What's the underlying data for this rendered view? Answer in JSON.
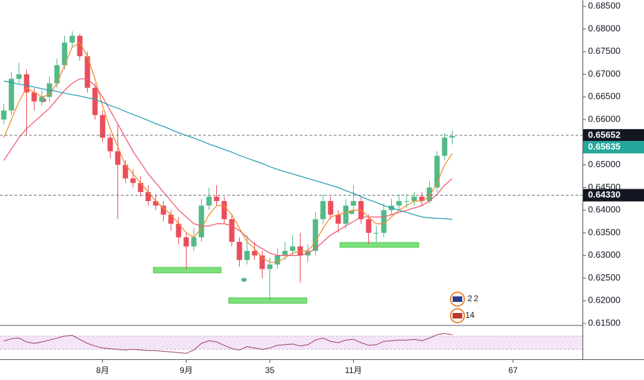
{
  "chart_data": [
    {
      "type": "candlestick",
      "up_color": "#53b987",
      "down_color": "#eb4d5c",
      "ohlc": [
        [
          0.66,
          0.6635,
          0.659,
          0.662
        ],
        [
          0.662,
          0.6705,
          0.661,
          0.669
        ],
        [
          0.669,
          0.6725,
          0.668,
          0.67
        ],
        [
          0.67,
          0.671,
          0.6565,
          0.666
        ],
        [
          0.666,
          0.667,
          0.662,
          0.664
        ],
        [
          0.664,
          0.6665,
          0.663,
          0.665
        ],
        [
          0.665,
          0.6695,
          0.664,
          0.668
        ],
        [
          0.668,
          0.6735,
          0.667,
          0.672
        ],
        [
          0.672,
          0.6785,
          0.671,
          0.677
        ],
        [
          0.677,
          0.6795,
          0.676,
          0.6785
        ],
        [
          0.6785,
          0.679,
          0.673,
          0.674
        ],
        [
          0.674,
          0.675,
          0.666,
          0.667
        ],
        [
          0.667,
          0.668,
          0.66,
          0.661
        ],
        [
          0.661,
          0.662,
          0.655,
          0.656
        ],
        [
          0.656,
          0.657,
          0.6515,
          0.653
        ],
        [
          0.653,
          0.659,
          0.638,
          0.65
        ],
        [
          0.65,
          0.651,
          0.646,
          0.647
        ],
        [
          0.647,
          0.649,
          0.645,
          0.646
        ],
        [
          0.646,
          0.6475,
          0.643,
          0.644
        ],
        [
          0.644,
          0.6455,
          0.641,
          0.642
        ],
        [
          0.642,
          0.6435,
          0.64,
          0.641
        ],
        [
          0.641,
          0.642,
          0.6375,
          0.639
        ],
        [
          0.639,
          0.64,
          0.6355,
          0.637
        ],
        [
          0.637,
          0.6385,
          0.6325,
          0.634
        ],
        [
          0.634,
          0.635,
          0.627,
          0.632
        ],
        [
          0.632,
          0.636,
          0.631,
          0.634
        ],
        [
          0.634,
          0.6425,
          0.633,
          0.641
        ],
        [
          0.641,
          0.645,
          0.64,
          0.643
        ],
        [
          0.643,
          0.6455,
          0.641,
          0.642
        ],
        [
          0.642,
          0.643,
          0.637,
          0.638
        ],
        [
          0.638,
          0.639,
          0.632,
          0.633
        ],
        [
          0.633,
          0.634,
          0.6275,
          0.629
        ],
        [
          0.629,
          0.6345,
          0.628,
          0.631
        ],
        [
          0.631,
          0.633,
          0.629,
          0.63
        ],
        [
          0.63,
          0.631,
          0.625,
          0.627
        ],
        [
          0.627,
          0.6295,
          0.62,
          0.628
        ],
        [
          0.628,
          0.6315,
          0.627,
          0.63
        ],
        [
          0.63,
          0.633,
          0.629,
          0.631
        ],
        [
          0.631,
          0.6345,
          0.63,
          0.632
        ],
        [
          0.632,
          0.635,
          0.624,
          0.63
        ],
        [
          0.63,
          0.6325,
          0.6285,
          0.631
        ],
        [
          0.631,
          0.6395,
          0.63,
          0.638
        ],
        [
          0.638,
          0.6435,
          0.637,
          0.642
        ],
        [
          0.642,
          0.643,
          0.638,
          0.639
        ],
        [
          0.639,
          0.64,
          0.635,
          0.637
        ],
        [
          0.637,
          0.6425,
          0.636,
          0.641
        ],
        [
          0.641,
          0.6455,
          0.64,
          0.642
        ],
        [
          0.642,
          0.643,
          0.637,
          0.638
        ],
        [
          0.638,
          0.639,
          0.6325,
          0.635
        ],
        [
          0.635,
          0.6365,
          0.633,
          0.635
        ],
        [
          0.635,
          0.6415,
          0.634,
          0.64
        ],
        [
          0.64,
          0.6425,
          0.639,
          0.641
        ],
        [
          0.641,
          0.6435,
          0.64,
          0.642
        ],
        [
          0.642,
          0.6435,
          0.6405,
          0.642
        ],
        [
          0.642,
          0.644,
          0.641,
          0.643
        ],
        [
          0.643,
          0.644,
          0.641,
          0.642
        ],
        [
          0.642,
          0.6465,
          0.6415,
          0.645
        ],
        [
          0.645,
          0.653,
          0.644,
          0.652
        ],
        [
          0.652,
          0.657,
          0.651,
          0.656
        ],
        [
          0.656,
          0.6575,
          0.6545,
          0.65635
        ]
      ],
      "series": [
        {
          "color": "#f28b2c",
          "values": [
            0.656,
            0.66,
            0.664,
            0.667,
            0.666,
            0.665,
            0.6655,
            0.668,
            0.672,
            0.676,
            0.677,
            0.674,
            0.669,
            0.663,
            0.658,
            0.654,
            0.65,
            0.648,
            0.646,
            0.644,
            0.642,
            0.6405,
            0.639,
            0.637,
            0.635,
            0.634,
            0.636,
            0.639,
            0.641,
            0.641,
            0.639,
            0.636,
            0.633,
            0.6315,
            0.6295,
            0.6285,
            0.6285,
            0.6295,
            0.6305,
            0.631,
            0.631,
            0.633,
            0.636,
            0.6385,
            0.639,
            0.6395,
            0.64,
            0.64,
            0.6385,
            0.637,
            0.637,
            0.6385,
            0.64,
            0.641,
            0.642,
            0.642,
            0.643,
            0.646,
            0.65,
            0.6525
          ]
        },
        {
          "color": "#ef5a6f",
          "values": [
            0.651,
            0.6535,
            0.656,
            0.658,
            0.6595,
            0.661,
            0.6625,
            0.6645,
            0.6665,
            0.668,
            0.669,
            0.669,
            0.6675,
            0.665,
            0.662,
            0.659,
            0.656,
            0.653,
            0.6505,
            0.648,
            0.646,
            0.644,
            0.642,
            0.64,
            0.6385,
            0.637,
            0.6365,
            0.6365,
            0.637,
            0.637,
            0.6365,
            0.6355,
            0.634,
            0.6325,
            0.6315,
            0.6305,
            0.63,
            0.63,
            0.63,
            0.63,
            0.6305,
            0.6315,
            0.633,
            0.6345,
            0.6355,
            0.6365,
            0.6375,
            0.6385,
            0.6385,
            0.6385,
            0.6385,
            0.639,
            0.6395,
            0.64,
            0.6405,
            0.641,
            0.642,
            0.6435,
            0.6455,
            0.647
          ]
        },
        {
          "color": "#2a9fb5",
          "values": [
            0.6685,
            0.6682,
            0.6678,
            0.6675,
            0.6672,
            0.6668,
            0.6665,
            0.6662,
            0.6658,
            0.6655,
            0.6652,
            0.6648,
            0.6645,
            0.6638,
            0.6631,
            0.6625,
            0.6618,
            0.6611,
            0.6605,
            0.6598,
            0.6591,
            0.6585,
            0.6578,
            0.6571,
            0.6565,
            0.6559,
            0.6553,
            0.6546,
            0.654,
            0.6534,
            0.6528,
            0.6521,
            0.6515,
            0.6509,
            0.6503,
            0.6496,
            0.649,
            0.6485,
            0.648,
            0.6475,
            0.647,
            0.6465,
            0.646,
            0.6455,
            0.645,
            0.6443,
            0.6437,
            0.643,
            0.6423,
            0.6417,
            0.641,
            0.6405,
            0.64,
            0.6395,
            0.639,
            0.6385,
            0.6383,
            0.6382,
            0.6381,
            0.638
          ]
        }
      ],
      "xlim": [
        -0.5,
        76.14
      ],
      "xticks": [
        {
          "value": 13,
          "label": "8月"
        },
        {
          "value": 24,
          "label": "9月"
        },
        35,
        {
          "value": 46,
          "label": "11月"
        },
        67
      ],
      "ylim": [
        0.6147,
        0.6864
      ],
      "yticks": [
        {
          "value": 0.615,
          "label": "0.61500"
        },
        {
          "value": 0.62,
          "label": "0.62000"
        },
        {
          "value": 0.625,
          "label": "0.62500"
        },
        {
          "value": 0.63,
          "label": "0.63000"
        },
        {
          "value": 0.635,
          "label": "0.63500"
        },
        {
          "value": 0.64,
          "label": "0.64000"
        },
        {
          "value": 0.645,
          "label": "0.64500"
        },
        {
          "value": 0.65,
          "label": "0.65000"
        },
        {
          "value": 0.655,
          "label": "0.65500"
        },
        {
          "value": 0.66,
          "label": "0.66000"
        },
        {
          "value": 0.665,
          "label": "0.66500"
        },
        {
          "value": 0.67,
          "label": "0.67000"
        },
        {
          "value": 0.675,
          "label": "0.67500"
        },
        {
          "value": 0.68,
          "label": "0.68000"
        },
        {
          "value": 0.685,
          "label": "0.68500"
        }
      ],
      "price_lines": [
        0.65652,
        {
          "value": 0.6433,
          "label": "0.64330"
        }
      ],
      "last_price": 0.65635,
      "last_price_color": "#26a69a",
      "event_labels": [
        "2",
        "2",
        "14"
      ]
    },
    {
      "type": "line",
      "color": "#9c3d5a",
      "values": [
        55,
        62,
        64,
        52,
        48,
        52,
        58,
        64,
        70,
        72,
        60,
        48,
        40,
        34,
        32,
        30,
        28,
        30,
        28,
        26,
        26,
        24,
        22,
        20,
        18,
        28,
        48,
        56,
        52,
        42,
        32,
        28,
        38,
        34,
        30,
        34,
        42,
        44,
        46,
        40,
        44,
        58,
        64,
        54,
        50,
        58,
        60,
        50,
        42,
        44,
        54,
        56,
        58,
        58,
        60,
        56,
        64,
        74,
        78,
        74
      ],
      "ylim": [
        0,
        100
      ],
      "band": [
        30,
        70
      ],
      "band_color": "#f3e4f7"
    }
  ]
}
